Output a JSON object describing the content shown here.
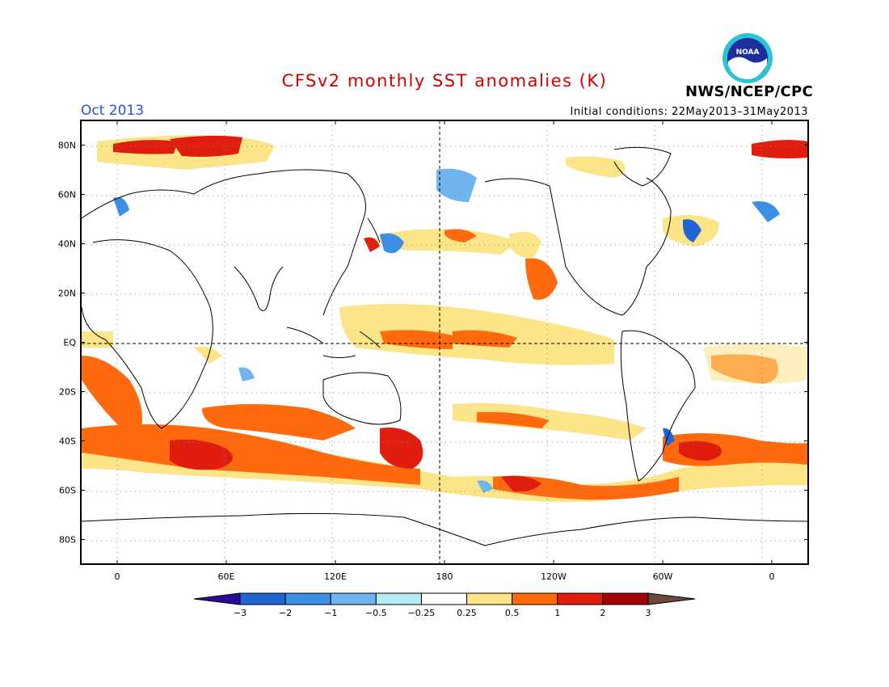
{
  "header": {
    "title": "CFSv2 monthly SST anomalies (K)",
    "month": "Oct 2013",
    "initial_conditions": "Initial conditions: 22May2013–31May2013",
    "org": "NWS/NCEP/CPC",
    "logo_text": "NOAA"
  },
  "colors": {
    "title": "#d40000",
    "month": "#2a52d8",
    "text": "#000000"
  },
  "map": {
    "lat_labels": [
      "80N",
      "60N",
      "40N",
      "20N",
      "EQ",
      "20S",
      "40S",
      "60S",
      "80S"
    ],
    "lat_values": [
      80,
      60,
      40,
      20,
      0,
      -20,
      -40,
      -60,
      -80
    ],
    "lon_labels": [
      "0",
      "60E",
      "120E",
      "180",
      "120W",
      "60W",
      "0"
    ],
    "lon_values": [
      0,
      60,
      120,
      180,
      240,
      300,
      360
    ],
    "lon_range": [
      -20,
      380
    ],
    "lat_range": [
      -90,
      90
    ]
  },
  "colorbar": {
    "labels": [
      "−3",
      "−2",
      "−1",
      "−0.5",
      "−0.25",
      "0.25",
      "0.5",
      "1",
      "2",
      "3"
    ],
    "colors": [
      "#2a0c97",
      "#1f66d4",
      "#3d8fe6",
      "#70b5f0",
      "#b4ecf2",
      "#ffffff",
      "#fce488",
      "#fe6a0d",
      "#e11d10",
      "#a10404",
      "#6b4a3a"
    ]
  }
}
